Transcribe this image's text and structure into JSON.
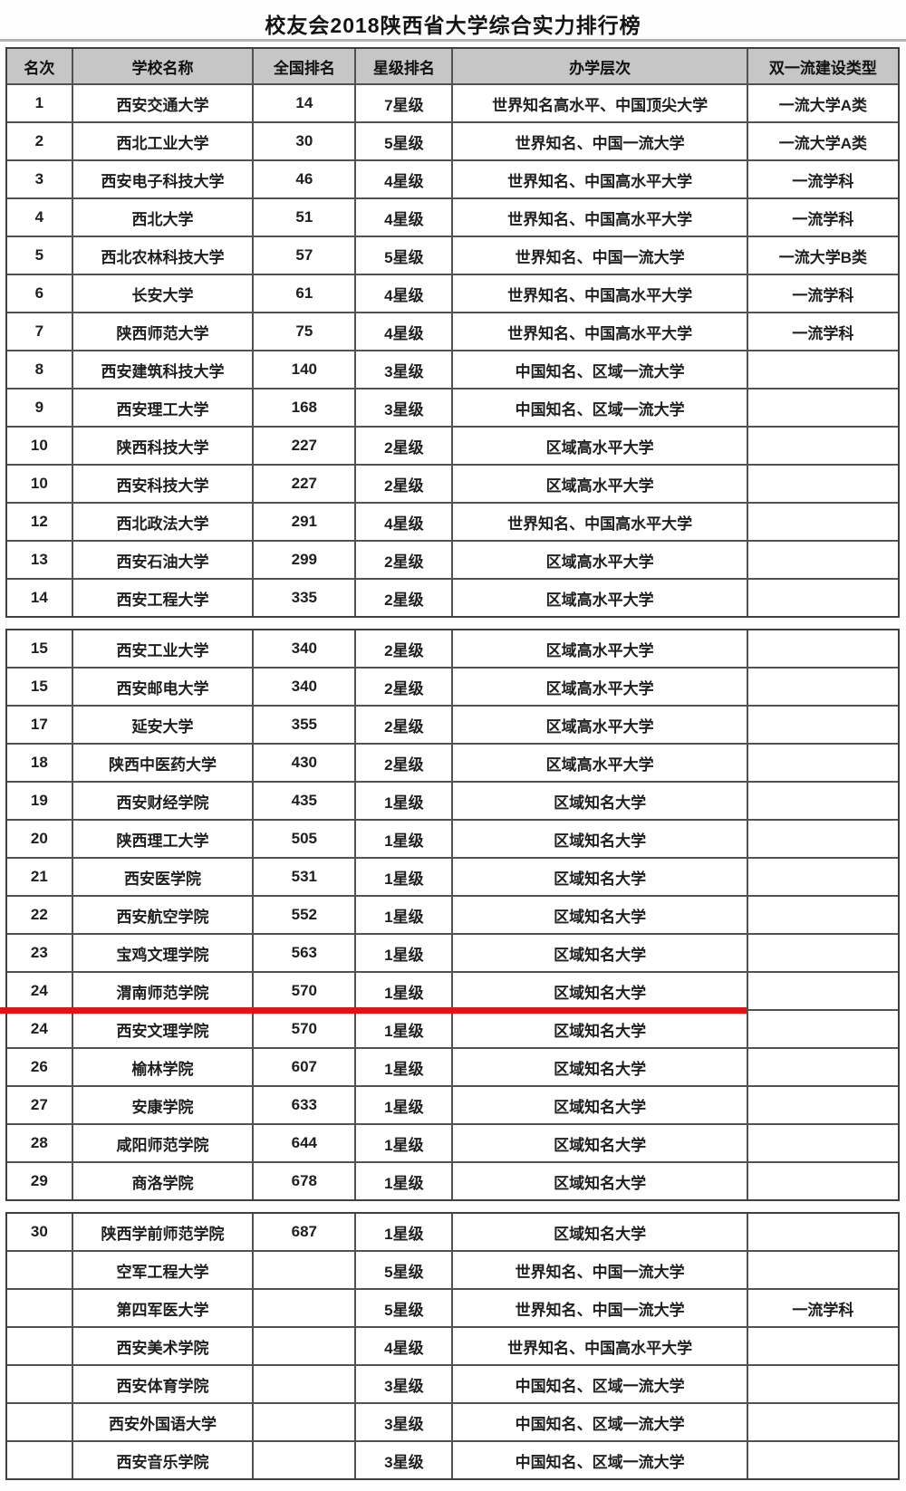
{
  "page": {
    "title": "校友会2018陕西省大学综合实力排行榜",
    "highlight_color": "#e01414"
  },
  "chart_data": {
    "type": "table",
    "title": "校友会2018陕西省大学综合实力排行榜",
    "columns": [
      "名次",
      "学校名称",
      "全国排名",
      "星级排名",
      "办学层次",
      "双一流建设类型"
    ],
    "column_keys": [
      "rank",
      "school",
      "national_rank",
      "star_rating",
      "level",
      "double_first_class"
    ],
    "sections": [
      {
        "rows": [
          [
            "1",
            "西安交通大学",
            "14",
            "7星级",
            "世界知名高水平、中国顶尖大学",
            "一流大学A类"
          ],
          [
            "2",
            "西北工业大学",
            "30",
            "5星级",
            "世界知名、中国一流大学",
            "一流大学A类"
          ],
          [
            "3",
            "西安电子科技大学",
            "46",
            "4星级",
            "世界知名、中国高水平大学",
            "一流学科"
          ],
          [
            "4",
            "西北大学",
            "51",
            "4星级",
            "世界知名、中国高水平大学",
            "一流学科"
          ],
          [
            "5",
            "西北农林科技大学",
            "57",
            "5星级",
            "世界知名、中国一流大学",
            "一流大学B类"
          ],
          [
            "6",
            "长安大学",
            "61",
            "4星级",
            "世界知名、中国高水平大学",
            "一流学科"
          ],
          [
            "7",
            "陕西师范大学",
            "75",
            "4星级",
            "世界知名、中国高水平大学",
            "一流学科"
          ],
          [
            "8",
            "西安建筑科技大学",
            "140",
            "3星级",
            "中国知名、区域一流大学",
            ""
          ],
          [
            "9",
            "西安理工大学",
            "168",
            "3星级",
            "中国知名、区域一流大学",
            ""
          ],
          [
            "10",
            "陕西科技大学",
            "227",
            "2星级",
            "区域高水平大学",
            ""
          ],
          [
            "10",
            "西安科技大学",
            "227",
            "2星级",
            "区域高水平大学",
            ""
          ],
          [
            "12",
            "西北政法大学",
            "291",
            "4星级",
            "世界知名、中国高水平大学",
            ""
          ],
          [
            "13",
            "西安石油大学",
            "299",
            "2星级",
            "区域高水平大学",
            ""
          ],
          [
            "14",
            "西安工程大学",
            "335",
            "2星级",
            "区域高水平大学",
            ""
          ]
        ]
      },
      {
        "rows": [
          [
            "15",
            "西安工业大学",
            "340",
            "2星级",
            "区域高水平大学",
            ""
          ],
          [
            "15",
            "西安邮电大学",
            "340",
            "2星级",
            "区域高水平大学",
            ""
          ],
          [
            "17",
            "延安大学",
            "355",
            "2星级",
            "区域高水平大学",
            ""
          ],
          [
            "18",
            "陕西中医药大学",
            "430",
            "2星级",
            "区域高水平大学",
            ""
          ],
          [
            "19",
            "西安财经学院",
            "435",
            "1星级",
            "区域知名大学",
            ""
          ],
          [
            "20",
            "陕西理工大学",
            "505",
            "1星级",
            "区域知名大学",
            ""
          ],
          [
            "21",
            "西安医学院",
            "531",
            "1星级",
            "区域知名大学",
            ""
          ],
          [
            "22",
            "西安航空学院",
            "552",
            "1星级",
            "区域知名大学",
            ""
          ],
          [
            "23",
            "宝鸡文理学院",
            "563",
            "1星级",
            "区域知名大学",
            ""
          ],
          [
            "24",
            "渭南师范学院",
            "570",
            "1星级",
            "区域知名大学",
            ""
          ],
          [
            "24",
            "西安文理学院",
            "570",
            "1星级",
            "区域知名大学",
            ""
          ],
          [
            "26",
            "榆林学院",
            "607",
            "1星级",
            "区域知名大学",
            ""
          ],
          [
            "27",
            "安康学院",
            "633",
            "1星级",
            "区域知名大学",
            ""
          ],
          [
            "28",
            "咸阳师范学院",
            "644",
            "1星级",
            "区域知名大学",
            ""
          ],
          [
            "29",
            "商洛学院",
            "678",
            "1星级",
            "区域知名大学",
            ""
          ]
        ]
      },
      {
        "rows": [
          [
            "30",
            "陕西学前师范学院",
            "687",
            "1星级",
            "区域知名大学",
            ""
          ],
          [
            "",
            "空军工程大学",
            "",
            "5星级",
            "世界知名、中国一流大学",
            ""
          ],
          [
            "",
            "第四军医大学",
            "",
            "5星级",
            "世界知名、中国一流大学",
            "一流学科"
          ],
          [
            "",
            "西安美术学院",
            "",
            "4星级",
            "世界知名、中国高水平大学",
            ""
          ],
          [
            "",
            "西安体育学院",
            "",
            "3星级",
            "中国知名、区域一流大学",
            ""
          ],
          [
            "",
            "西安外国语大学",
            "",
            "3星级",
            "中国知名、区域一流大学",
            ""
          ],
          [
            "",
            "西安音乐学院",
            "",
            "3星级",
            "中国知名、区域一流大学",
            ""
          ]
        ]
      }
    ],
    "highlight": {
      "section": 1,
      "row": 9,
      "school": "渭南师范学院",
      "style": "red-underline"
    },
    "layout": {
      "header_background": "#c6c6c6",
      "grid": "on",
      "legend": "none"
    }
  }
}
